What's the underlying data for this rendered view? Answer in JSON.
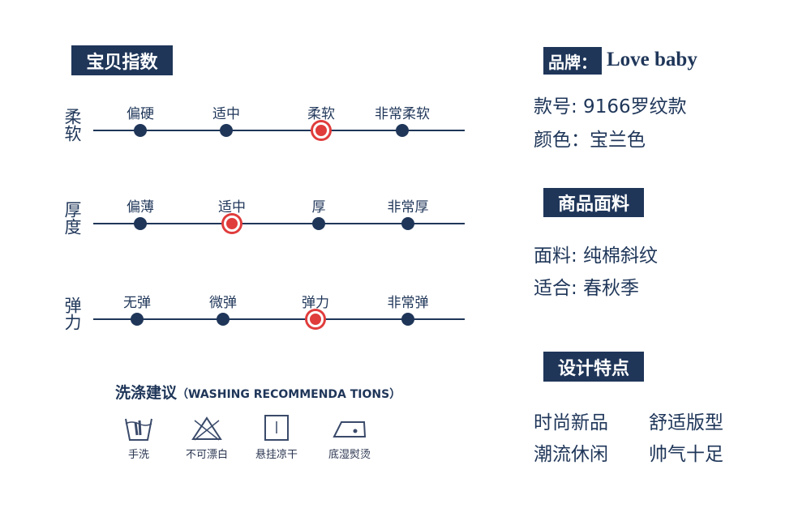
{
  "index_title": "宝贝指数",
  "scales": [
    {
      "name": "柔软",
      "options": [
        "偏硬",
        "适中",
        "柔软",
        "非常柔软"
      ],
      "selected": 2
    },
    {
      "name": "厚度",
      "options": [
        "偏薄",
        "适中",
        "厚",
        "非常厚"
      ],
      "selected": 1
    },
    {
      "name": "弹力",
      "options": [
        "无弹",
        "微弹",
        "弹力",
        "非常弹"
      ],
      "selected": 2
    }
  ],
  "washing": {
    "title": "洗涤建议",
    "subtitle": "（WASHING RECOMMENDA TIONS）",
    "items": [
      {
        "label": "手洗",
        "icon": "hand-wash-icon"
      },
      {
        "label": "不可漂白",
        "icon": "no-bleach-icon"
      },
      {
        "label": "悬挂凉干",
        "icon": "hang-dry-icon"
      },
      {
        "label": "底湿熨烫",
        "icon": "iron-icon"
      }
    ]
  },
  "brand": {
    "label": "品牌：",
    "value": "Love baby"
  },
  "style_no": "款号: 9166罗纹款",
  "color": "颜色：宝兰色",
  "fabric_title": "商品面料",
  "fabric": "面料: 纯棉斜纹",
  "suitable": "适合: 春秋季",
  "design_title": "设计特点",
  "features": [
    "时尚新品",
    "舒适版型",
    "潮流休闲",
    "帅气十足"
  ],
  "colors": {
    "navy": "#1f3659",
    "red": "#e03c3c"
  }
}
